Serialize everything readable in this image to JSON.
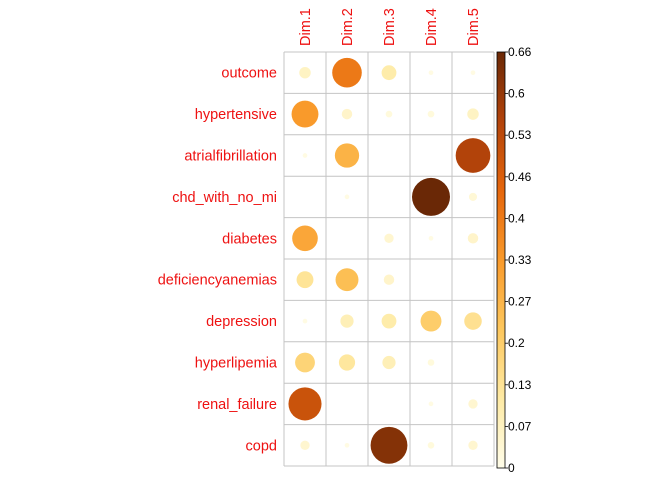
{
  "chart_data": {
    "type": "heatmap",
    "columns": [
      "Dim.1",
      "Dim.2",
      "Dim.3",
      "Dim.4",
      "Dim.5"
    ],
    "rows": [
      "outcome",
      "hypertensive",
      "atrialfibrillation",
      "chd_with_no_mi",
      "diabetes",
      "deficiencyanemias",
      "depression",
      "hyperlipemia",
      "renal_failure",
      "copd"
    ],
    "values": [
      [
        0.06,
        0.4,
        0.1,
        0.01,
        0.01
      ],
      [
        0.33,
        0.05,
        0.02,
        0.02,
        0.06
      ],
      [
        0.01,
        0.27,
        0.0,
        0.0,
        0.55
      ],
      [
        0.0,
        0.01,
        0.0,
        0.66,
        0.03
      ],
      [
        0.3,
        0.0,
        0.04,
        0.01,
        0.05
      ],
      [
        0.13,
        0.24,
        0.05,
        0.0,
        0.0
      ],
      [
        0.01,
        0.08,
        0.1,
        0.2,
        0.14
      ],
      [
        0.18,
        0.12,
        0.08,
        0.02,
        0.0
      ],
      [
        0.5,
        0.0,
        0.0,
        0.01,
        0.04
      ],
      [
        0.04,
        0.01,
        0.62,
        0.02,
        0.04
      ]
    ],
    "color_scale": {
      "min": 0,
      "max": 0.66,
      "ticks": [
        "0",
        "0.07",
        "0.13",
        "0.2",
        "0.27",
        "0.33",
        "0.4",
        "0.46",
        "0.53",
        "0.6",
        "0.66"
      ],
      "colors": [
        "#fffde9",
        "#feeaa4",
        "#fdc75d",
        "#f99a2b",
        "#e5660c",
        "#b2430a",
        "#6a2806"
      ]
    },
    "grid": true,
    "marker": "circle",
    "legend": "right"
  }
}
